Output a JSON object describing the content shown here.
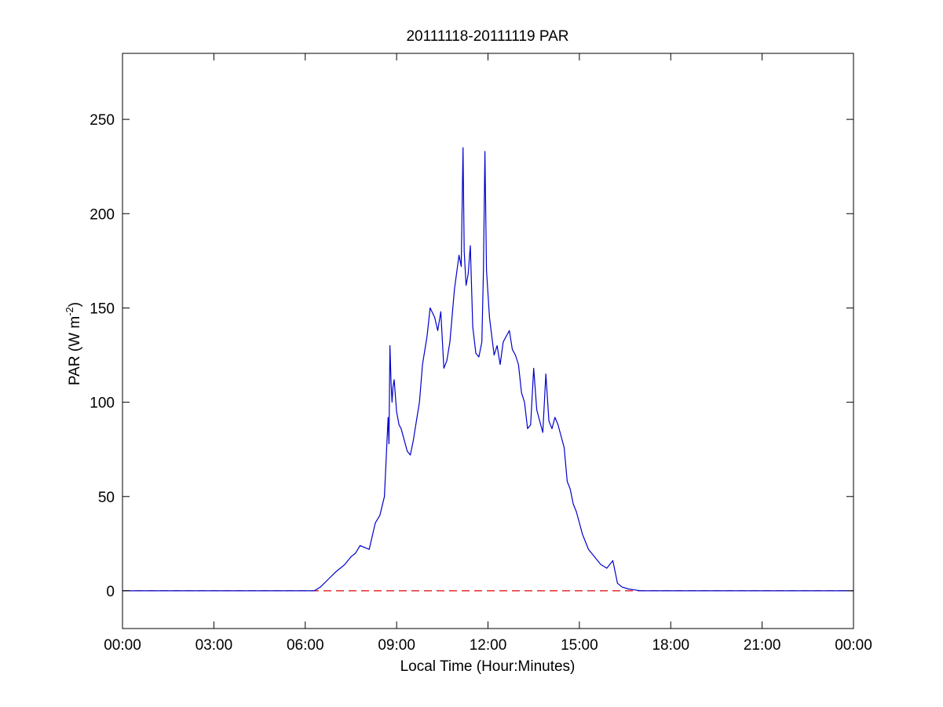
{
  "chart_data": {
    "type": "line",
    "title": "20111118-20111119 PAR",
    "xlabel": "Local Time (Hour:Minutes)",
    "ylabel": "PAR (W m-2)",
    "ylabel_parts": {
      "base": "PAR (W m",
      "sup": "-2",
      "end": ")"
    },
    "xlim_hours": [
      0,
      24
    ],
    "ylim": [
      -20,
      285
    ],
    "x_ticks": [
      {
        "hours": 0,
        "label": "00:00"
      },
      {
        "hours": 3,
        "label": "03:00"
      },
      {
        "hours": 6,
        "label": "06:00"
      },
      {
        "hours": 9,
        "label": "09:00"
      },
      {
        "hours": 12,
        "label": "12:00"
      },
      {
        "hours": 15,
        "label": "15:00"
      },
      {
        "hours": 18,
        "label": "18:00"
      },
      {
        "hours": 21,
        "label": "21:00"
      },
      {
        "hours": 24,
        "label": "00:00"
      }
    ],
    "y_ticks": [
      0,
      50,
      100,
      150,
      200,
      250
    ],
    "grid": false,
    "series": [
      {
        "style": "solid",
        "color": "#0000cc",
        "x_hours": [
          0,
          6.3,
          6.5,
          6.75,
          7.0,
          7.15,
          7.3,
          7.5,
          7.65,
          7.8,
          7.95,
          8.1,
          8.3,
          8.45,
          8.6,
          8.7,
          8.72,
          8.75,
          8.78,
          8.82,
          8.85,
          8.88,
          8.92,
          9.0,
          9.08,
          9.15,
          9.25,
          9.35,
          9.45,
          9.55,
          9.65,
          9.75,
          9.85,
          10.0,
          10.1,
          10.25,
          10.35,
          10.45,
          10.55,
          10.65,
          10.75,
          10.9,
          11.05,
          11.12,
          11.18,
          11.22,
          11.28,
          11.35,
          11.42,
          11.5,
          11.6,
          11.7,
          11.8,
          11.85,
          11.9,
          11.95,
          12.05,
          12.2,
          12.3,
          12.4,
          12.5,
          12.6,
          12.7,
          12.8,
          12.9,
          13.0,
          13.1,
          13.2,
          13.3,
          13.4,
          13.5,
          13.6,
          13.7,
          13.8,
          13.9,
          14.0,
          14.1,
          14.2,
          14.3,
          14.4,
          14.5,
          14.6,
          14.7,
          14.8,
          14.9,
          15.0,
          15.1,
          15.2,
          15.3,
          15.5,
          15.7,
          15.9,
          16.0,
          16.1,
          16.15,
          16.25,
          16.4,
          16.6,
          16.8,
          17.0,
          17.1,
          24
        ],
        "values": [
          0,
          0,
          2,
          6,
          10,
          12,
          14,
          18,
          20,
          24,
          23,
          22,
          36,
          40,
          50,
          85,
          92,
          78,
          130,
          110,
          100,
          108,
          112,
          95,
          88,
          86,
          80,
          74,
          72,
          80,
          90,
          100,
          120,
          135,
          150,
          145,
          138,
          148,
          118,
          122,
          132,
          160,
          178,
          172,
          235,
          180,
          162,
          168,
          183,
          140,
          126,
          124,
          132,
          170,
          233,
          170,
          145,
          125,
          130,
          120,
          132,
          135,
          138,
          128,
          125,
          120,
          105,
          100,
          86,
          88,
          118,
          96,
          90,
          84,
          115,
          90,
          86,
          92,
          88,
          82,
          76,
          58,
          54,
          46,
          42,
          36,
          30,
          26,
          22,
          18,
          14,
          12,
          14,
          16,
          12,
          4,
          2,
          1,
          0.5,
          0,
          0,
          0
        ]
      },
      {
        "style": "dashed",
        "color": "#dd0000",
        "x_hours": [
          0,
          24
        ],
        "values": [
          0,
          0
        ]
      }
    ]
  }
}
